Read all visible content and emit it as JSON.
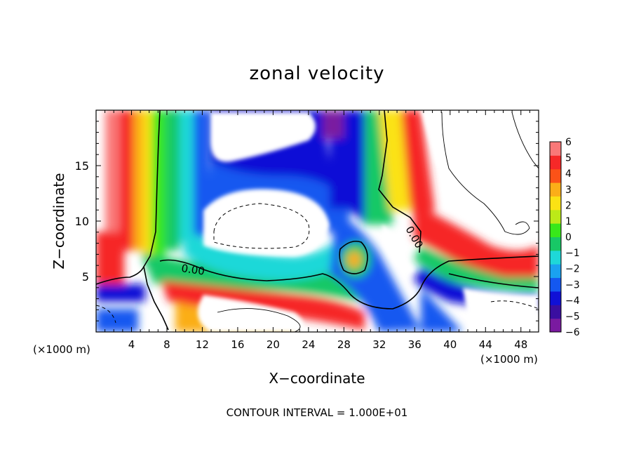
{
  "chart_data": {
    "type": "heatmap",
    "title": "zonal velocity",
    "xlabel": "X−coordinate",
    "ylabel": "Z−coordinate",
    "xlim": [
      0,
      50
    ],
    "ylim": [
      0,
      20
    ],
    "x_unit": "(×1000 m)",
    "z_unit": "(×1000 m)",
    "x_ticks": [
      4,
      8,
      12,
      16,
      20,
      24,
      28,
      32,
      36,
      40,
      44,
      48
    ],
    "x_tick_labels": [
      "4",
      "8",
      "12",
      "16",
      "20",
      "24",
      "28",
      "32",
      "36",
      "40",
      "44",
      "48"
    ],
    "y_ticks": [
      5,
      10,
      15
    ],
    "y_tick_labels": [
      "5",
      "10",
      "15"
    ],
    "contour_labels": [
      {
        "text": "0.00",
        "x": 10.2,
        "z": 5.8
      },
      {
        "text": "0.00",
        "x": 36.5,
        "z": 8.3
      }
    ],
    "colorbar": {
      "levels": [
        -6,
        -5,
        -4,
        -3,
        -2,
        -1,
        0,
        1,
        2,
        3,
        4,
        5,
        6
      ],
      "labels": [
        "−6",
        "−5",
        "−4",
        "−3",
        "−2",
        "−1",
        "0",
        "1",
        "2",
        "3",
        "4",
        "5",
        "6"
      ],
      "colors": [
        "#7a1aa0",
        "#3a0ea0",
        "#1010d6",
        "#1458f0",
        "#1aa2f0",
        "#1ed8d8",
        "#18c866",
        "#38e81a",
        "#bcea18",
        "#fbe214",
        "#fbae18",
        "#fb5218",
        "#f62828",
        "#f97878"
      ]
    },
    "grid": false,
    "footer": "CONTOUR INTERVAL = 1.000E+01"
  }
}
